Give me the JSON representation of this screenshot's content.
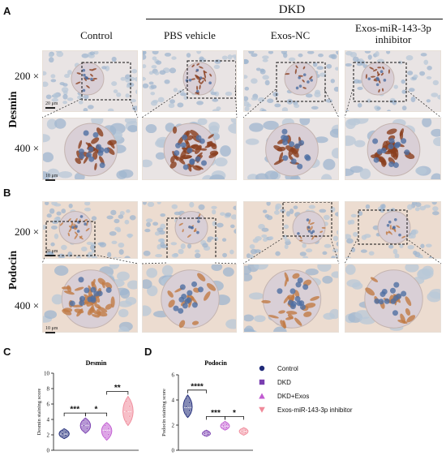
{
  "panels": {
    "A": "A",
    "B": "B",
    "C": "C",
    "D": "D"
  },
  "group_header": "DKD",
  "columns": [
    "Control",
    "PBS vehicle",
    "Exos-NC",
    "Exos-miR-143-3p\ninhibitor"
  ],
  "magnifications": [
    "200 ×",
    "400 ×",
    "200 ×",
    "400 ×"
  ],
  "stain_labels": [
    "Desmin",
    "Podocin"
  ],
  "scale_bars": [
    "20 μm",
    "10 μm",
    "20 μm",
    "10 μm"
  ],
  "colors": {
    "control": "#1f2a78",
    "dkd": "#7a3fb0",
    "dkd_exos": "#c15bd1",
    "inhibitor": "#f08a9a",
    "desmin_brown": "#8a3f1e",
    "podocin_brown": "#c07a45",
    "tissue_blue": "#9fb6cf",
    "tissue_bg": "#e9e4e4"
  },
  "legend": [
    "Control",
    "DKD",
    "DKD+Exos",
    "Exos-miR-143-3p inhibitor"
  ],
  "chart_data": [
    {
      "type": "violin",
      "title": "Desmin",
      "ylabel": "Desmin staining score",
      "xlabel": "",
      "ylim": [
        0,
        10
      ],
      "yticks": [
        0,
        2,
        4,
        6,
        8,
        10
      ],
      "categories": [
        "Control",
        "DKD",
        "DKD+Exos",
        "Exos-miR-143-3p inhibitor"
      ],
      "series": [
        {
          "name": "Control",
          "median": 2.1,
          "min": 1.5,
          "max": 2.8
        },
        {
          "name": "DKD",
          "median": 3.2,
          "min": 2.2,
          "max": 4.2
        },
        {
          "name": "DKD+Exos",
          "median": 2.6,
          "min": 1.3,
          "max": 3.6
        },
        {
          "name": "Exos-miR-143-3p inhibitor",
          "median": 5.0,
          "min": 3.2,
          "max": 7.0
        }
      ],
      "annotations": [
        {
          "from": 0,
          "to": 1,
          "label": "***"
        },
        {
          "from": 1,
          "to": 2,
          "label": "*"
        },
        {
          "from": 2,
          "to": 3,
          "label": "**"
        }
      ]
    },
    {
      "type": "violin",
      "title": "Podocin",
      "ylabel": "Podocin staining score",
      "xlabel": "",
      "ylim": [
        0,
        6
      ],
      "yticks": [
        0,
        2,
        4,
        6
      ],
      "categories": [
        "Control",
        "DKD",
        "DKD+Exos",
        "Exos-miR-143-3p inhibitor"
      ],
      "series": [
        {
          "name": "Control",
          "median": 3.4,
          "min": 2.6,
          "max": 4.4
        },
        {
          "name": "DKD",
          "median": 1.3,
          "min": 1.1,
          "max": 1.6
        },
        {
          "name": "DKD+Exos",
          "median": 1.9,
          "min": 1.6,
          "max": 2.3
        },
        {
          "name": "Exos-miR-143-3p inhibitor",
          "median": 1.5,
          "min": 1.2,
          "max": 1.8
        }
      ],
      "annotations": [
        {
          "from": 0,
          "to": 1,
          "label": "****"
        },
        {
          "from": 1,
          "to": 2,
          "label": "***"
        },
        {
          "from": 2,
          "to": 3,
          "label": "*"
        }
      ]
    }
  ]
}
